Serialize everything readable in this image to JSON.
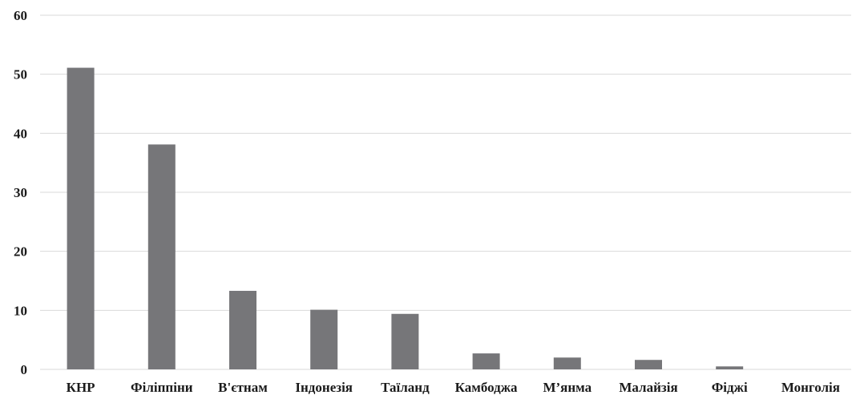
{
  "chart_data": {
    "type": "bar",
    "title": "",
    "xlabel": "",
    "ylabel": "",
    "categories": [
      "КНР",
      "Філіппіни",
      "В'єтнам",
      "Індонезія",
      "Таїланд",
      "Камбоджа",
      "М’янма",
      "Малайзія",
      "Фіджі",
      "Монголія"
    ],
    "values": [
      51.1,
      38.1,
      13.3,
      10.1,
      9.4,
      2.7,
      2.0,
      1.6,
      0.5,
      0.0
    ],
    "ylim": [
      0,
      60
    ],
    "yticks": [
      "0",
      "10",
      "20",
      "30",
      "40",
      "50",
      "60"
    ],
    "grid": true,
    "legend": "none",
    "bar_color": "#767679",
    "grid_color": "#d9d9d9"
  }
}
